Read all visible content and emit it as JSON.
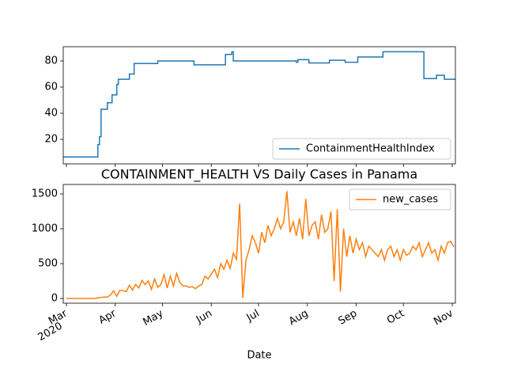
{
  "chart_data": [
    {
      "type": "line",
      "x": [
        -2,
        20,
        20,
        21,
        21,
        22,
        22,
        26,
        26,
        29,
        29,
        32,
        32,
        33,
        33,
        40,
        40,
        43,
        43,
        58,
        58,
        81,
        81,
        101,
        101,
        105,
        105,
        106,
        106,
        146,
        146,
        147,
        147,
        154,
        154,
        167,
        167,
        177,
        177,
        185,
        185,
        201,
        201,
        227,
        227,
        235,
        235,
        240,
        240,
        247
      ],
      "series": [
        {
          "name": "ContainmentHealthIndex",
          "color": "#1f77b4",
          "values": [
            6.5,
            6.5,
            16,
            16,
            22,
            22,
            43,
            43,
            48,
            48,
            54,
            54,
            62,
            62,
            66,
            66,
            70,
            70,
            78,
            78,
            80,
            80,
            77,
            77,
            85,
            85,
            87,
            87,
            80,
            80,
            79,
            79,
            81,
            81,
            78.5,
            78.5,
            80.5,
            80.5,
            79,
            79,
            83,
            83,
            87,
            87,
            66.5,
            66.5,
            69,
            69,
            66,
            66
          ]
        }
      ],
      "xlim": [
        -2,
        247
      ],
      "xticks": [
        0,
        31,
        61,
        92,
        122,
        153,
        184,
        214,
        245
      ],
      "ylim": [
        1.2,
        90.9
      ],
      "yticks": [
        20,
        40,
        60,
        80
      ],
      "legend": "lower right"
    },
    {
      "type": "line",
      "title": "CONTAINMENT_HEALTH VS Daily Cases in Panama",
      "x_label": "Date",
      "x_year_label": "2020",
      "x": [
        0,
        2,
        4,
        6,
        8,
        10,
        12,
        14,
        16,
        18,
        20,
        22,
        24,
        26,
        28,
        30,
        32,
        34,
        36,
        38,
        40,
        42,
        44,
        46,
        48,
        50,
        52,
        54,
        56,
        58,
        60,
        62,
        64,
        66,
        68,
        70,
        72,
        74,
        76,
        78,
        80,
        82,
        84,
        86,
        88,
        90,
        92,
        94,
        96,
        98,
        100,
        102,
        104,
        106,
        108,
        110,
        112,
        114,
        116,
        118,
        120,
        122,
        124,
        126,
        128,
        130,
        132,
        134,
        136,
        138,
        140,
        142,
        144,
        146,
        148,
        150,
        152,
        154,
        156,
        158,
        160,
        162,
        164,
        166,
        168,
        170,
        172,
        174,
        176,
        178,
        180,
        182,
        184,
        186,
        188,
        190,
        192,
        194,
        196,
        198,
        200,
        202,
        204,
        206,
        208,
        210,
        212,
        214,
        216,
        218,
        220,
        222,
        224,
        226,
        228,
        230,
        232,
        234,
        236,
        238,
        240,
        242,
        244,
        246
      ],
      "series": [
        {
          "name": "new_cases",
          "color": "#ff7f0e",
          "values": [
            0,
            0,
            0,
            0,
            0,
            0,
            0,
            0,
            0,
            0,
            10,
            15,
            20,
            20,
            50,
            110,
            30,
            120,
            110,
            100,
            190,
            120,
            200,
            150,
            260,
            200,
            250,
            130,
            280,
            160,
            200,
            340,
            150,
            320,
            180,
            360,
            230,
            180,
            180,
            160,
            170,
            140,
            180,
            200,
            320,
            280,
            350,
            420,
            300,
            500,
            420,
            550,
            430,
            650,
            560,
            1360,
            10,
            550,
            700,
            900,
            800,
            650,
            950,
            800,
            1050,
            900,
            1000,
            1150,
            1000,
            1100,
            1540,
            950,
            1100,
            900,
            1150,
            850,
            1430,
            900,
            1050,
            1100,
            850,
            1200,
            950,
            1000,
            1250,
            250,
            1280,
            100,
            1000,
            600,
            900,
            650,
            850,
            700,
            800,
            600,
            750,
            700,
            650,
            600,
            700,
            550,
            700,
            750,
            600,
            700,
            550,
            700,
            620,
            650,
            750,
            700,
            800,
            600,
            700,
            800,
            650,
            700,
            550,
            750,
            650,
            800,
            820,
            740
          ]
        }
      ],
      "xlim": [
        -2,
        247
      ],
      "xticks": [
        {
          "value": 0,
          "label": "Mar"
        },
        {
          "value": 31,
          "label": "Apr"
        },
        {
          "value": 61,
          "label": "May"
        },
        {
          "value": 92,
          "label": "Jun"
        },
        {
          "value": 122,
          "label": "Jul"
        },
        {
          "value": 153,
          "label": "Aug"
        },
        {
          "value": 184,
          "label": "Sep"
        },
        {
          "value": 214,
          "label": "Oct"
        },
        {
          "value": 245,
          "label": "Nov"
        }
      ],
      "ylim": [
        -68,
        1636
      ],
      "yticks": [
        0,
        500,
        1000,
        1500
      ],
      "legend": "upper right"
    }
  ]
}
